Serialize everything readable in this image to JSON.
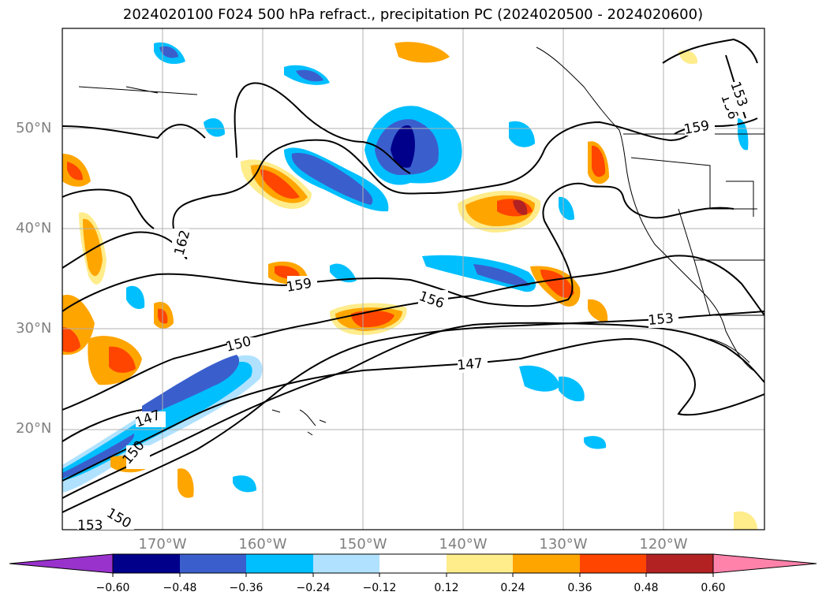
{
  "title": "2024020100 F024 500 hPa refract., precipitation PC (2024020500 - 2024020600)",
  "axes": {
    "lat_labels": [
      "20°N",
      "30°N",
      "40°N",
      "50°N"
    ],
    "lon_labels": [
      "170°W",
      "160°W",
      "150°W",
      "140°W",
      "130°W",
      "120°W"
    ]
  },
  "contour_labels": [
    "162",
    "159",
    "156",
    "153",
    "150",
    "147",
    "159",
    "156",
    "153",
    "150",
    "147",
    "153",
    "150",
    "156",
    "153"
  ],
  "colorbar": {
    "ticks": [
      "−0.60",
      "−0.48",
      "−0.36",
      "−0.24",
      "−0.12",
      "0.12",
      "0.24",
      "0.36",
      "0.48",
      "0.60"
    ],
    "colors": {
      "lt_neg_extend": "#9932cc",
      "neg_060": "#00008b",
      "neg_048": "#3a5fcd",
      "neg_036": "#00bfff",
      "neg_024": "#b0e2ff",
      "neutral": "#ffffff",
      "pos_012": "#ffec8b",
      "pos_024": "#ffa500",
      "pos_036": "#ff4500",
      "pos_048": "#b22222",
      "gt_pos_extend": "#ff82ab"
    }
  },
  "chart_data": {
    "type": "map",
    "projection": "PlateCarree",
    "extent_lon": [
      -180,
      -110
    ],
    "extent_lat": [
      10,
      60
    ],
    "grid": true,
    "contour_field": "500 hPa refractivity",
    "contour_levels": [
      147,
      150,
      153,
      156,
      159,
      162
    ],
    "fill_field": "precipitation PC",
    "fill_levels": [
      -0.6,
      -0.48,
      -0.36,
      -0.24,
      -0.12,
      0.12,
      0.24,
      0.36,
      0.48,
      0.6
    ]
  }
}
